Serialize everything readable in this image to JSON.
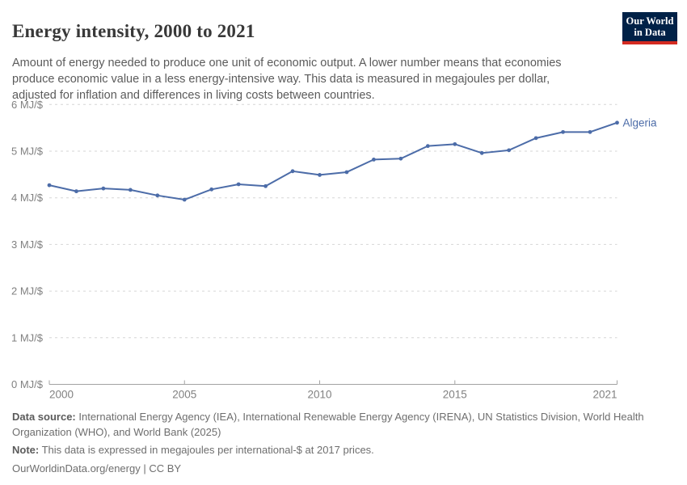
{
  "header": {
    "title": "Energy intensity, 2000 to 2021",
    "logo": {
      "line1": "Our World",
      "line2": "in Data",
      "bg_color": "#002147",
      "stripe_color": "#D42B21",
      "text_color": "#ffffff"
    }
  },
  "subtitle": "Amount of energy needed to produce one unit of economic output. A lower number means that economies produce economic value in a less energy-intensive way. This data is measured in megajoules per dollar, adjusted for inflation and differences in living costs between countries.",
  "chart_data": {
    "type": "line",
    "title": "Energy intensity, 2000 to 2021",
    "unit": "MJ/$",
    "x": [
      2000,
      2001,
      2002,
      2003,
      2004,
      2005,
      2006,
      2007,
      2008,
      2009,
      2010,
      2011,
      2012,
      2013,
      2014,
      2015,
      2016,
      2017,
      2018,
      2019,
      2020,
      2021
    ],
    "series": [
      {
        "name": "Algeria",
        "color": "#4C6CA8",
        "values": [
          4.27,
          4.14,
          4.2,
          4.17,
          4.05,
          3.96,
          4.18,
          4.29,
          4.25,
          4.57,
          4.49,
          4.55,
          4.82,
          4.84,
          5.11,
          5.15,
          4.96,
          5.02,
          5.28,
          5.41,
          5.41,
          5.61
        ]
      }
    ],
    "ylim": [
      0,
      6
    ],
    "y_ticks": [
      0,
      1,
      2,
      3,
      4,
      5,
      6
    ],
    "y_tick_labels": [
      "0 MJ/$",
      "1 MJ/$",
      "2 MJ/$",
      "3 MJ/$",
      "4 MJ/$",
      "5 MJ/$",
      "6 MJ/$"
    ],
    "x_ticks": [
      2000,
      2005,
      2010,
      2015,
      2021
    ],
    "x_tick_labels": [
      "2000",
      "2005",
      "2010",
      "2015",
      "2021"
    ],
    "grid": "horizontal-dashed",
    "legend_position": "end-of-line",
    "colors": {
      "gridline": "#d6d6d6",
      "axis_line": "#a3a3a3",
      "tick_mark": "#a3a3a3",
      "tick_label": "#818181"
    }
  },
  "footer": {
    "data_source_label": "Data source:",
    "data_source_text": "International Energy Agency (IEA), International Renewable Energy Agency (IRENA), UN Statistics Division, World Health Organization (WHO), and World Bank (2025)",
    "note_label": "Note:",
    "note_text": "This data is expressed in megajoules per international-$ at 2017 prices.",
    "url": "OurWorldinData.org/energy",
    "separator": "|",
    "license": "CC BY"
  }
}
